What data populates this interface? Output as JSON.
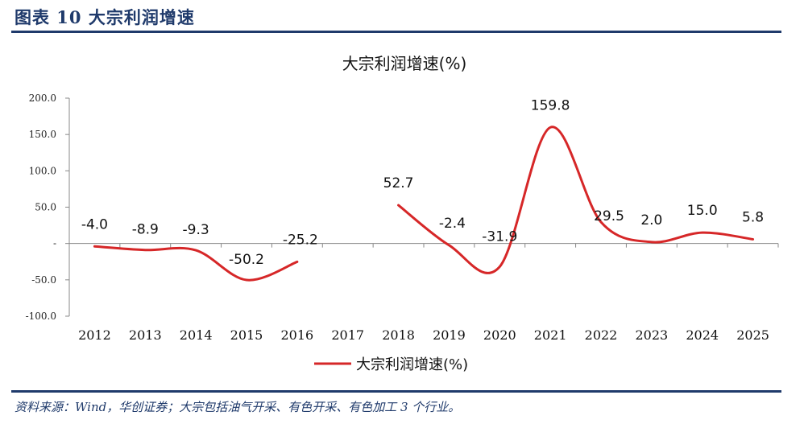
{
  "figure": {
    "title": "图表 10    大宗利润增速",
    "source": "资料来源：Wind，华创证券；大宗包括油气开采、有色开采、有色加工 3 个行业。"
  },
  "colors": {
    "accent": "#1f3a6b",
    "series": "#d62728",
    "axis": "#333333"
  },
  "chart_data": {
    "type": "line",
    "title": "大宗利润增速(%)",
    "xlabel": "",
    "ylabel": "",
    "categories": [
      "2012",
      "2013",
      "2014",
      "2015",
      "2016",
      "2017",
      "2018",
      "2019",
      "2020",
      "2021",
      "2022",
      "2023",
      "2024",
      "2025"
    ],
    "series": [
      {
        "name": "大宗利润增速(%)",
        "values": [
          -4.0,
          -8.9,
          -9.3,
          -50.2,
          -25.2,
          null,
          52.7,
          -2.4,
          -31.9,
          159.8,
          29.5,
          2.0,
          15.0,
          5.8
        ],
        "labels": [
          "-4.0",
          "-8.9",
          "-9.3",
          "-50.2",
          "-25.2",
          "",
          "52.7",
          "-2.4",
          "-31.9",
          "159.8",
          "29.5",
          "2.0",
          "15.0",
          "5.8"
        ]
      }
    ],
    "ylim": [
      -100,
      200
    ],
    "yticks": [
      -100,
      -50,
      0,
      50,
      100,
      150,
      200
    ],
    "ytick_labels": [
      "-100.0",
      "-50.0",
      "-",
      "50.0",
      "100.0",
      "150.0",
      "200.0"
    ],
    "smooth": true,
    "grid": false,
    "legend": "bottom-center"
  }
}
